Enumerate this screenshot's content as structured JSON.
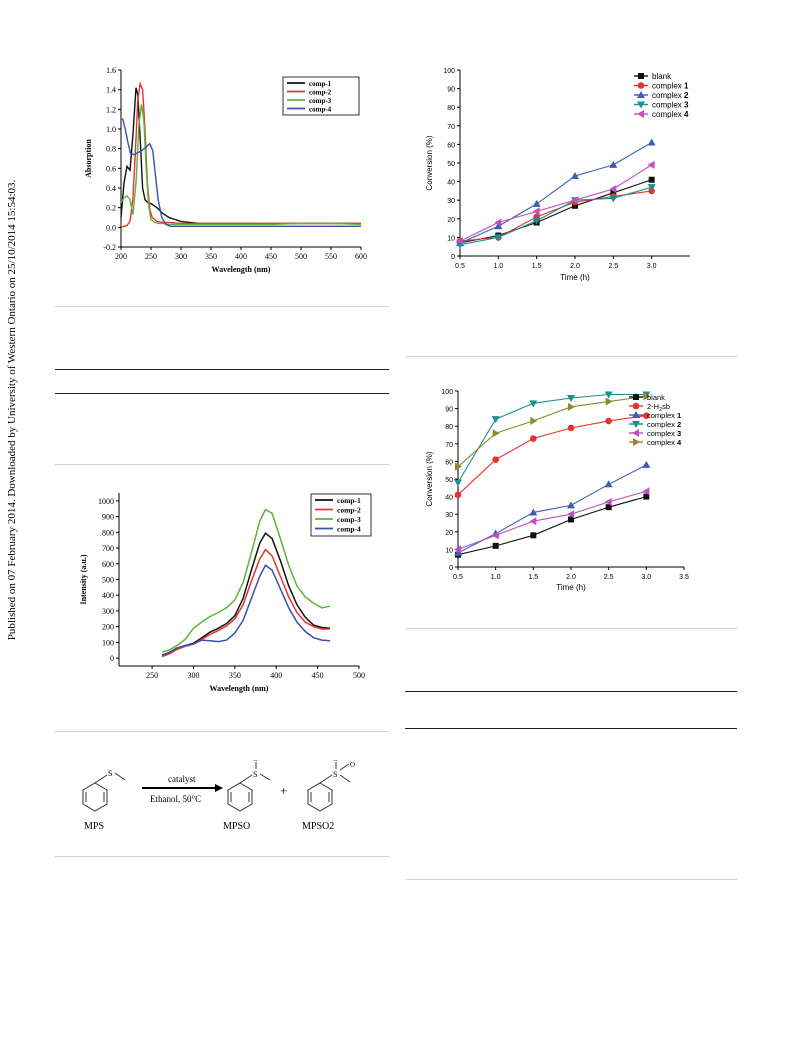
{
  "sidebar_text": "Published on 07 February 2014. Downloaded by University of Western Ontario on 25/10/2014 15:54:03.",
  "scheme": {
    "reactant": "MPS",
    "product1": "MPSO",
    "product2": "MPSO2",
    "arrow_top": "catalyst",
    "arrow_bottom": "Ethanol, 50°C",
    "plus": "+"
  },
  "chart_data": [
    {
      "type": "line",
      "xlabel": "Wavelength (nm)",
      "ylabel": "Absorption",
      "xlim": [
        200,
        600
      ],
      "ylim": [
        -0.2,
        1.6
      ],
      "xticks": [
        "200",
        "250",
        "300",
        "350",
        "400",
        "450",
        "500",
        "550",
        "600"
      ],
      "yticks": [
        "-0.2",
        "0.0",
        "0.2",
        "0.4",
        "0.6",
        "0.8",
        "1.0",
        "1.2",
        "1.4",
        "1.6"
      ],
      "legend_position": "top-right",
      "series": [
        {
          "name": "comp-1",
          "color": "#111111",
          "x": [
            200,
            205,
            210,
            215,
            220,
            225,
            228,
            232,
            236,
            240,
            245,
            250,
            260,
            270,
            280,
            300,
            330,
            360,
            400,
            450,
            500,
            550,
            600
          ],
          "y": [
            0.1,
            0.45,
            0.62,
            0.58,
            0.95,
            1.42,
            1.35,
            0.9,
            0.4,
            0.28,
            0.25,
            0.24,
            0.2,
            0.14,
            0.1,
            0.06,
            0.04,
            0.04,
            0.04,
            0.04,
            0.04,
            0.04,
            0.04
          ]
        },
        {
          "name": "comp-2",
          "color": "#e8332c",
          "x": [
            200,
            210,
            215,
            220,
            225,
            228,
            232,
            236,
            240,
            244,
            248,
            252,
            260,
            270,
            280,
            300,
            330,
            360,
            400,
            450,
            500,
            550,
            600
          ],
          "y": [
            0.0,
            0.02,
            0.06,
            0.3,
            0.9,
            1.3,
            1.46,
            1.4,
            1.0,
            0.45,
            0.18,
            0.1,
            0.06,
            0.05,
            0.05,
            0.04,
            0.04,
            0.04,
            0.04,
            0.04,
            0.04,
            0.04,
            0.04
          ]
        },
        {
          "name": "comp-3",
          "color": "#5bb53a",
          "x": [
            200,
            205,
            210,
            215,
            220,
            225,
            230,
            234,
            238,
            242,
            246,
            250,
            256,
            262,
            270,
            280,
            300,
            330,
            360,
            400,
            450,
            500,
            550,
            600
          ],
          "y": [
            0.25,
            0.3,
            0.32,
            0.28,
            0.13,
            0.45,
            1.05,
            1.25,
            1.1,
            0.6,
            0.22,
            0.08,
            0.05,
            0.04,
            0.04,
            0.03,
            0.03,
            0.03,
            0.03,
            0.03,
            0.03,
            0.04,
            0.04,
            0.03
          ]
        },
        {
          "name": "comp-4",
          "color": "#3a4fb0",
          "x": [
            200,
            203,
            207,
            212,
            216,
            222,
            228,
            235,
            242,
            248,
            253,
            257,
            262,
            268,
            275,
            282,
            290,
            300,
            330,
            360,
            400,
            450,
            500,
            550,
            600
          ],
          "y": [
            1.1,
            1.1,
            1.0,
            0.85,
            0.75,
            0.74,
            0.76,
            0.78,
            0.82,
            0.85,
            0.78,
            0.55,
            0.28,
            0.1,
            0.03,
            0.01,
            0.01,
            0.01,
            0.01,
            0.01,
            0.01,
            0.01,
            0.01,
            0.01,
            0.01
          ]
        }
      ]
    },
    {
      "type": "line",
      "xlabel": "Wavelength (nm)",
      "ylabel": "Intensity (a.u.)",
      "xlim": [
        210,
        500
      ],
      "ylim": [
        -50,
        1050
      ],
      "xticks": [
        "250",
        "300",
        "350",
        "400",
        "450",
        "500"
      ],
      "yticks": [
        "0",
        "100",
        "200",
        "300",
        "400",
        "500",
        "600",
        "700",
        "800",
        "900",
        "1000"
      ],
      "legend_position": "top-right",
      "series": [
        {
          "name": "comp-1",
          "color": "#111111",
          "x": [
            262,
            270,
            280,
            290,
            300,
            310,
            320,
            330,
            340,
            350,
            360,
            370,
            380,
            387,
            395,
            405,
            415,
            425,
            435,
            445,
            455,
            465
          ],
          "y": [
            15,
            30,
            60,
            80,
            95,
            130,
            165,
            190,
            220,
            270,
            380,
            560,
            730,
            795,
            760,
            620,
            460,
            340,
            260,
            210,
            195,
            190
          ]
        },
        {
          "name": "comp-2",
          "color": "#e8332c",
          "x": [
            262,
            270,
            280,
            290,
            300,
            310,
            320,
            330,
            340,
            350,
            360,
            370,
            380,
            387,
            395,
            405,
            415,
            425,
            435,
            445,
            455,
            465
          ],
          "y": [
            10,
            25,
            55,
            75,
            90,
            120,
            150,
            175,
            205,
            250,
            340,
            490,
            630,
            690,
            650,
            520,
            390,
            290,
            230,
            200,
            185,
            185
          ]
        },
        {
          "name": "comp-3",
          "color": "#5bb53a",
          "x": [
            262,
            270,
            280,
            290,
            300,
            310,
            320,
            330,
            340,
            350,
            360,
            370,
            380,
            387,
            395,
            405,
            415,
            425,
            435,
            445,
            455,
            465
          ],
          "y": [
            40,
            50,
            80,
            120,
            190,
            230,
            265,
            290,
            320,
            370,
            480,
            670,
            870,
            945,
            920,
            760,
            590,
            460,
            390,
            350,
            320,
            330
          ]
        },
        {
          "name": "comp-4",
          "color": "#3a4fb0",
          "x": [
            262,
            270,
            280,
            290,
            300,
            310,
            320,
            330,
            340,
            350,
            360,
            370,
            380,
            387,
            395,
            405,
            415,
            425,
            435,
            445,
            455,
            465
          ],
          "y": [
            20,
            35,
            65,
            80,
            90,
            115,
            110,
            105,
            115,
            160,
            240,
            380,
            520,
            590,
            560,
            440,
            320,
            230,
            170,
            130,
            115,
            110
          ]
        }
      ]
    },
    {
      "type": "line",
      "xlabel": "Time (h)",
      "ylabel": "Conversion (%)",
      "xlim": [
        0.5,
        3.5
      ],
      "ylim": [
        0,
        100
      ],
      "xticks": [
        "0.5",
        "1.0",
        "1.5",
        "2.0",
        "2.5",
        "3.0"
      ],
      "yticks": [
        "0",
        "10",
        "20",
        "30",
        "40",
        "50",
        "60",
        "70",
        "80",
        "90",
        "100"
      ],
      "legend_position": "top-right",
      "x": [
        0.5,
        1.0,
        1.5,
        2.0,
        2.5,
        3.0
      ],
      "series": [
        {
          "name": "blank",
          "label_main": "blank",
          "label_bold": "",
          "color": "#111111",
          "marker": "square",
          "values": [
            7,
            11,
            18,
            27,
            34,
            41
          ]
        },
        {
          "name": "complex 1",
          "label_main": "complex ",
          "label_bold": "1",
          "color": "#e8332c",
          "marker": "circle",
          "values": [
            8,
            10,
            21,
            29,
            32,
            35
          ]
        },
        {
          "name": "complex 2",
          "label_main": "complex ",
          "label_bold": "2",
          "color": "#3a5fb5",
          "marker": "triangle-up",
          "values": [
            7,
            16,
            28,
            43,
            49,
            61
          ]
        },
        {
          "name": "complex 3",
          "label_main": "complex ",
          "label_bold": "3",
          "color": "#1b8f8f",
          "marker": "triangle-down",
          "values": [
            6,
            10,
            19,
            30,
            31,
            37
          ]
        },
        {
          "name": "complex 4",
          "label_main": "complex ",
          "label_bold": "4",
          "color": "#c04fc0",
          "marker": "triangle-left",
          "values": [
            8,
            18,
            24,
            30,
            36,
            49
          ]
        }
      ]
    },
    {
      "type": "line",
      "xlabel": "Time (h)",
      "ylabel": "Conversion (%)",
      "xlim": [
        0.5,
        3.5
      ],
      "ylim": [
        0,
        100
      ],
      "xticks": [
        "0.5",
        "1.0",
        "1.5",
        "2.0",
        "2.5",
        "3.0",
        "3.5"
      ],
      "yticks": [
        "0",
        "10",
        "20",
        "30",
        "40",
        "50",
        "60",
        "70",
        "80",
        "90",
        "100"
      ],
      "legend_position": "top-right",
      "x": [
        0.5,
        1.0,
        1.5,
        2.0,
        2.5,
        3.0
      ],
      "series": [
        {
          "name": "blank",
          "label_main": "blank",
          "label_bold": "",
          "color": "#111111",
          "marker": "square",
          "values": [
            7,
            12,
            18,
            27,
            34,
            40
          ]
        },
        {
          "name": "2-H2sb",
          "label_main": "2-H",
          "label_sub": "2",
          "label_tail": "sb",
          "label_bold": "",
          "color": "#e8332c",
          "marker": "circle",
          "values": [
            41,
            61,
            73,
            79,
            83,
            86
          ]
        },
        {
          "name": "complex 1",
          "label_main": "complex ",
          "label_bold": "1",
          "color": "#3a5fb5",
          "marker": "triangle-up",
          "values": [
            8,
            19,
            31,
            35,
            47,
            58
          ]
        },
        {
          "name": "complex 2",
          "label_main": "complex ",
          "label_bold": "2",
          "color": "#1b8f8f",
          "marker": "triangle-down",
          "values": [
            48,
            84,
            93,
            96,
            98,
            98
          ]
        },
        {
          "name": "complex 3",
          "label_main": "complex ",
          "label_bold": "3",
          "color": "#c04fc0",
          "marker": "triangle-left",
          "values": [
            10,
            18,
            26,
            30,
            37,
            43
          ]
        },
        {
          "name": "complex 4",
          "label_main": "complex ",
          "label_bold": "4",
          "color": "#8a8a2a",
          "marker": "triangle-right",
          "values": [
            57,
            76,
            83,
            91,
            94,
            97
          ]
        }
      ]
    }
  ]
}
